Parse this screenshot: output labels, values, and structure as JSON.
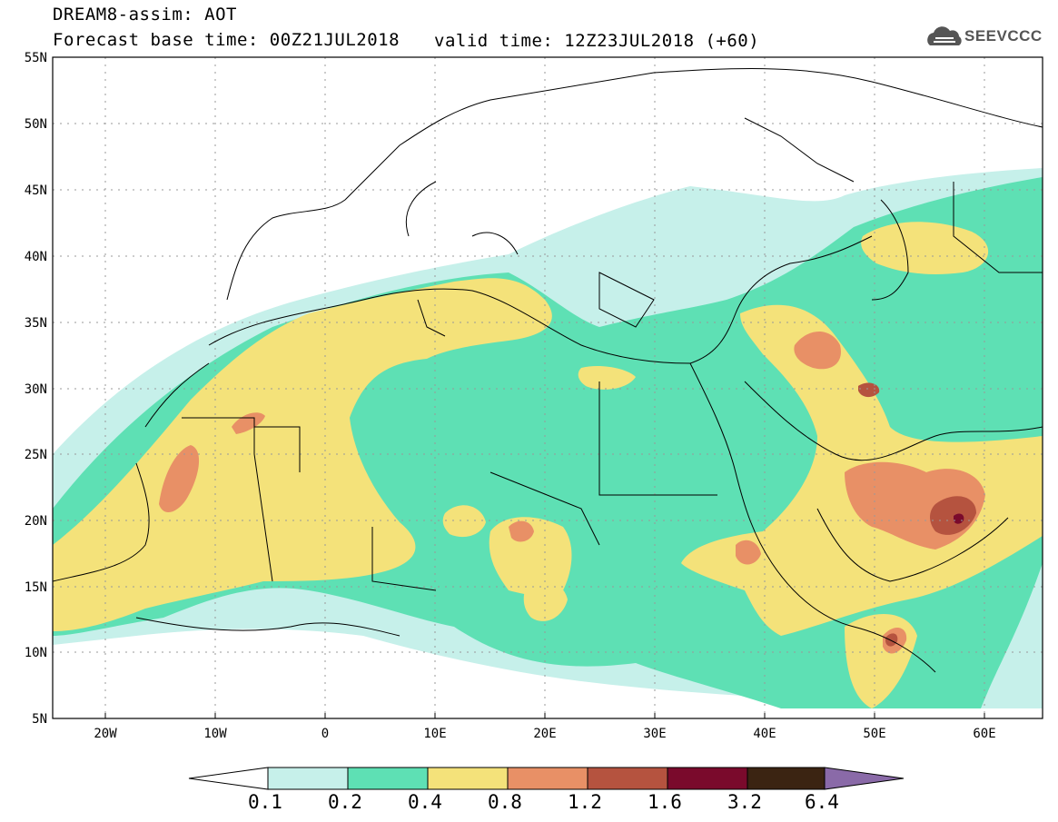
{
  "header": {
    "title": "DREAM8-assim: AOT",
    "base_time": "Forecast base time: 00Z21JUL2018",
    "valid_time": "valid time: 12Z23JUL2018 (+60)",
    "logo_text": "SEEVCCC"
  },
  "map": {
    "lon_range": [
      -25,
      65
    ],
    "lat_range": [
      5,
      55
    ],
    "lat_labels": [
      "55N",
      "50N",
      "45N",
      "40N",
      "35N",
      "30N",
      "25N",
      "20N",
      "15N",
      "10N",
      "5N"
    ],
    "lon_labels": [
      "20W",
      "10W",
      "0",
      "10E",
      "20E",
      "30E",
      "40E",
      "50E",
      "60E"
    ],
    "grid": true
  },
  "colorbar": {
    "levels": [
      "0.1",
      "0.2",
      "0.4",
      "0.8",
      "1.2",
      "1.6",
      "3.2",
      "6.4"
    ],
    "colors": [
      "#c6f0ea",
      "#5ee0b4",
      "#f4e27a",
      "#e89066",
      "#b5533f",
      "#7a0a2c",
      "#3b2412",
      "#8a6aa8"
    ]
  }
}
